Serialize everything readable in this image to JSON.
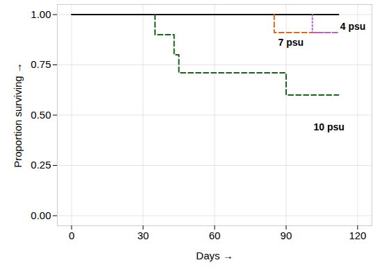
{
  "chart_data": {
    "type": "line",
    "x_label": "Days",
    "y_label": "Proportion surviving",
    "xlim": [
      -6,
      126
    ],
    "xticks": [
      0,
      30,
      60,
      90,
      120
    ],
    "ylim": [
      -0.05,
      1.05
    ],
    "yticks": [
      {
        "value": 0,
        "label": "0.00"
      },
      {
        "value": 0.25,
        "label": "0.25"
      },
      {
        "value": 0.5,
        "label": "0.50"
      },
      {
        "value": 0.75,
        "label": "0.75"
      },
      {
        "value": 1,
        "label": "1.00"
      }
    ],
    "grid": true,
    "series": [
      {
        "color": "#000000",
        "line_style": "solid",
        "x": [
          0,
          112
        ],
        "values": [
          1,
          1
        ]
      },
      {
        "name": "7 psu",
        "color": "#d2691e",
        "line_style": "dashed",
        "x": [
          85,
          85,
          112
        ],
        "values": [
          1,
          0.91,
          0.91
        ]
      },
      {
        "name": "4 psu",
        "color": "#b45ee6",
        "line_style": "dotted",
        "x": [
          101,
          101,
          112
        ],
        "values": [
          1,
          0.91,
          0.91
        ]
      },
      {
        "name": "10 psu",
        "color": "#1b5e20",
        "line_style": "dashed",
        "x": [
          35,
          35,
          43,
          45,
          90,
          112
        ],
        "values": [
          1,
          0.9,
          0.8,
          0.71,
          0.6,
          0.6
        ]
      }
    ],
    "annotations": [
      {
        "text": "4 psu",
        "x": 118,
        "y": 0.94
      },
      {
        "text": "7 psu",
        "x": 92,
        "y": 0.86
      },
      {
        "text": "10 psu",
        "x": 108,
        "y": 0.44
      }
    ]
  }
}
